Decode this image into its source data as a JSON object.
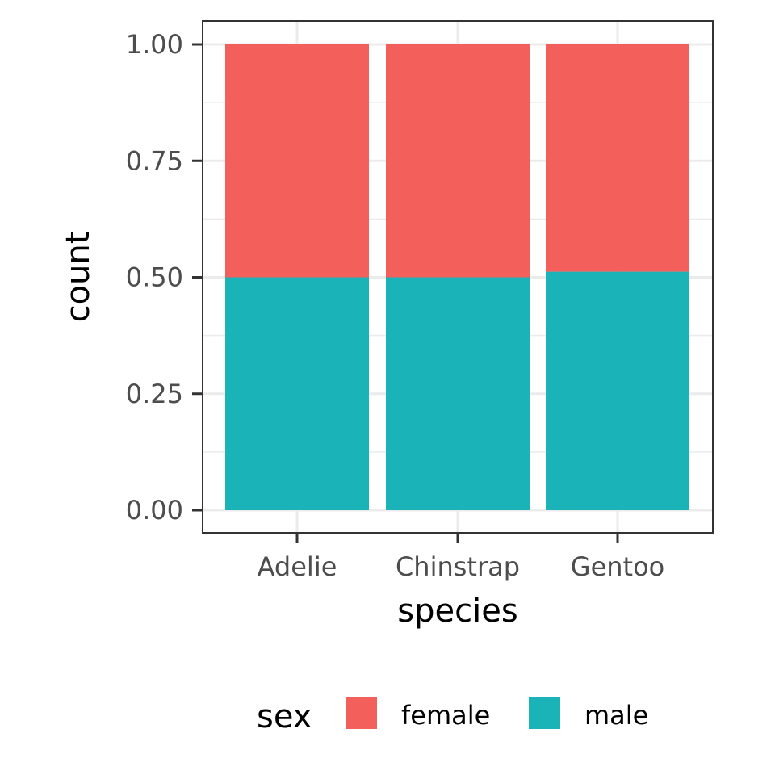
{
  "chart_data": {
    "type": "bar",
    "stacked": true,
    "position": "fill",
    "title": "",
    "xlabel": "species",
    "ylabel": "count",
    "categories": [
      "Adelie",
      "Chinstrap",
      "Gentoo"
    ],
    "ylim": [
      0,
      1
    ],
    "yticks": [
      0,
      0.25,
      0.5,
      0.75,
      1
    ],
    "ytick_labels": [
      "0.00",
      "0.25",
      "0.50",
      "0.75",
      "1.00"
    ],
    "grid": true,
    "legend": {
      "title": "sex",
      "placement": "bottom"
    },
    "series": [
      {
        "name": "male",
        "color": "#1AB4B8",
        "values": [
          0.5,
          0.5,
          0.512
        ]
      },
      {
        "name": "female",
        "color": "#F3605C",
        "values": [
          0.5,
          0.5,
          0.488
        ]
      }
    ],
    "legend_order": [
      "female",
      "male"
    ],
    "colors": {
      "grid": "#ebebeb",
      "panel_border": "#333333",
      "tick": "#333333"
    }
  }
}
